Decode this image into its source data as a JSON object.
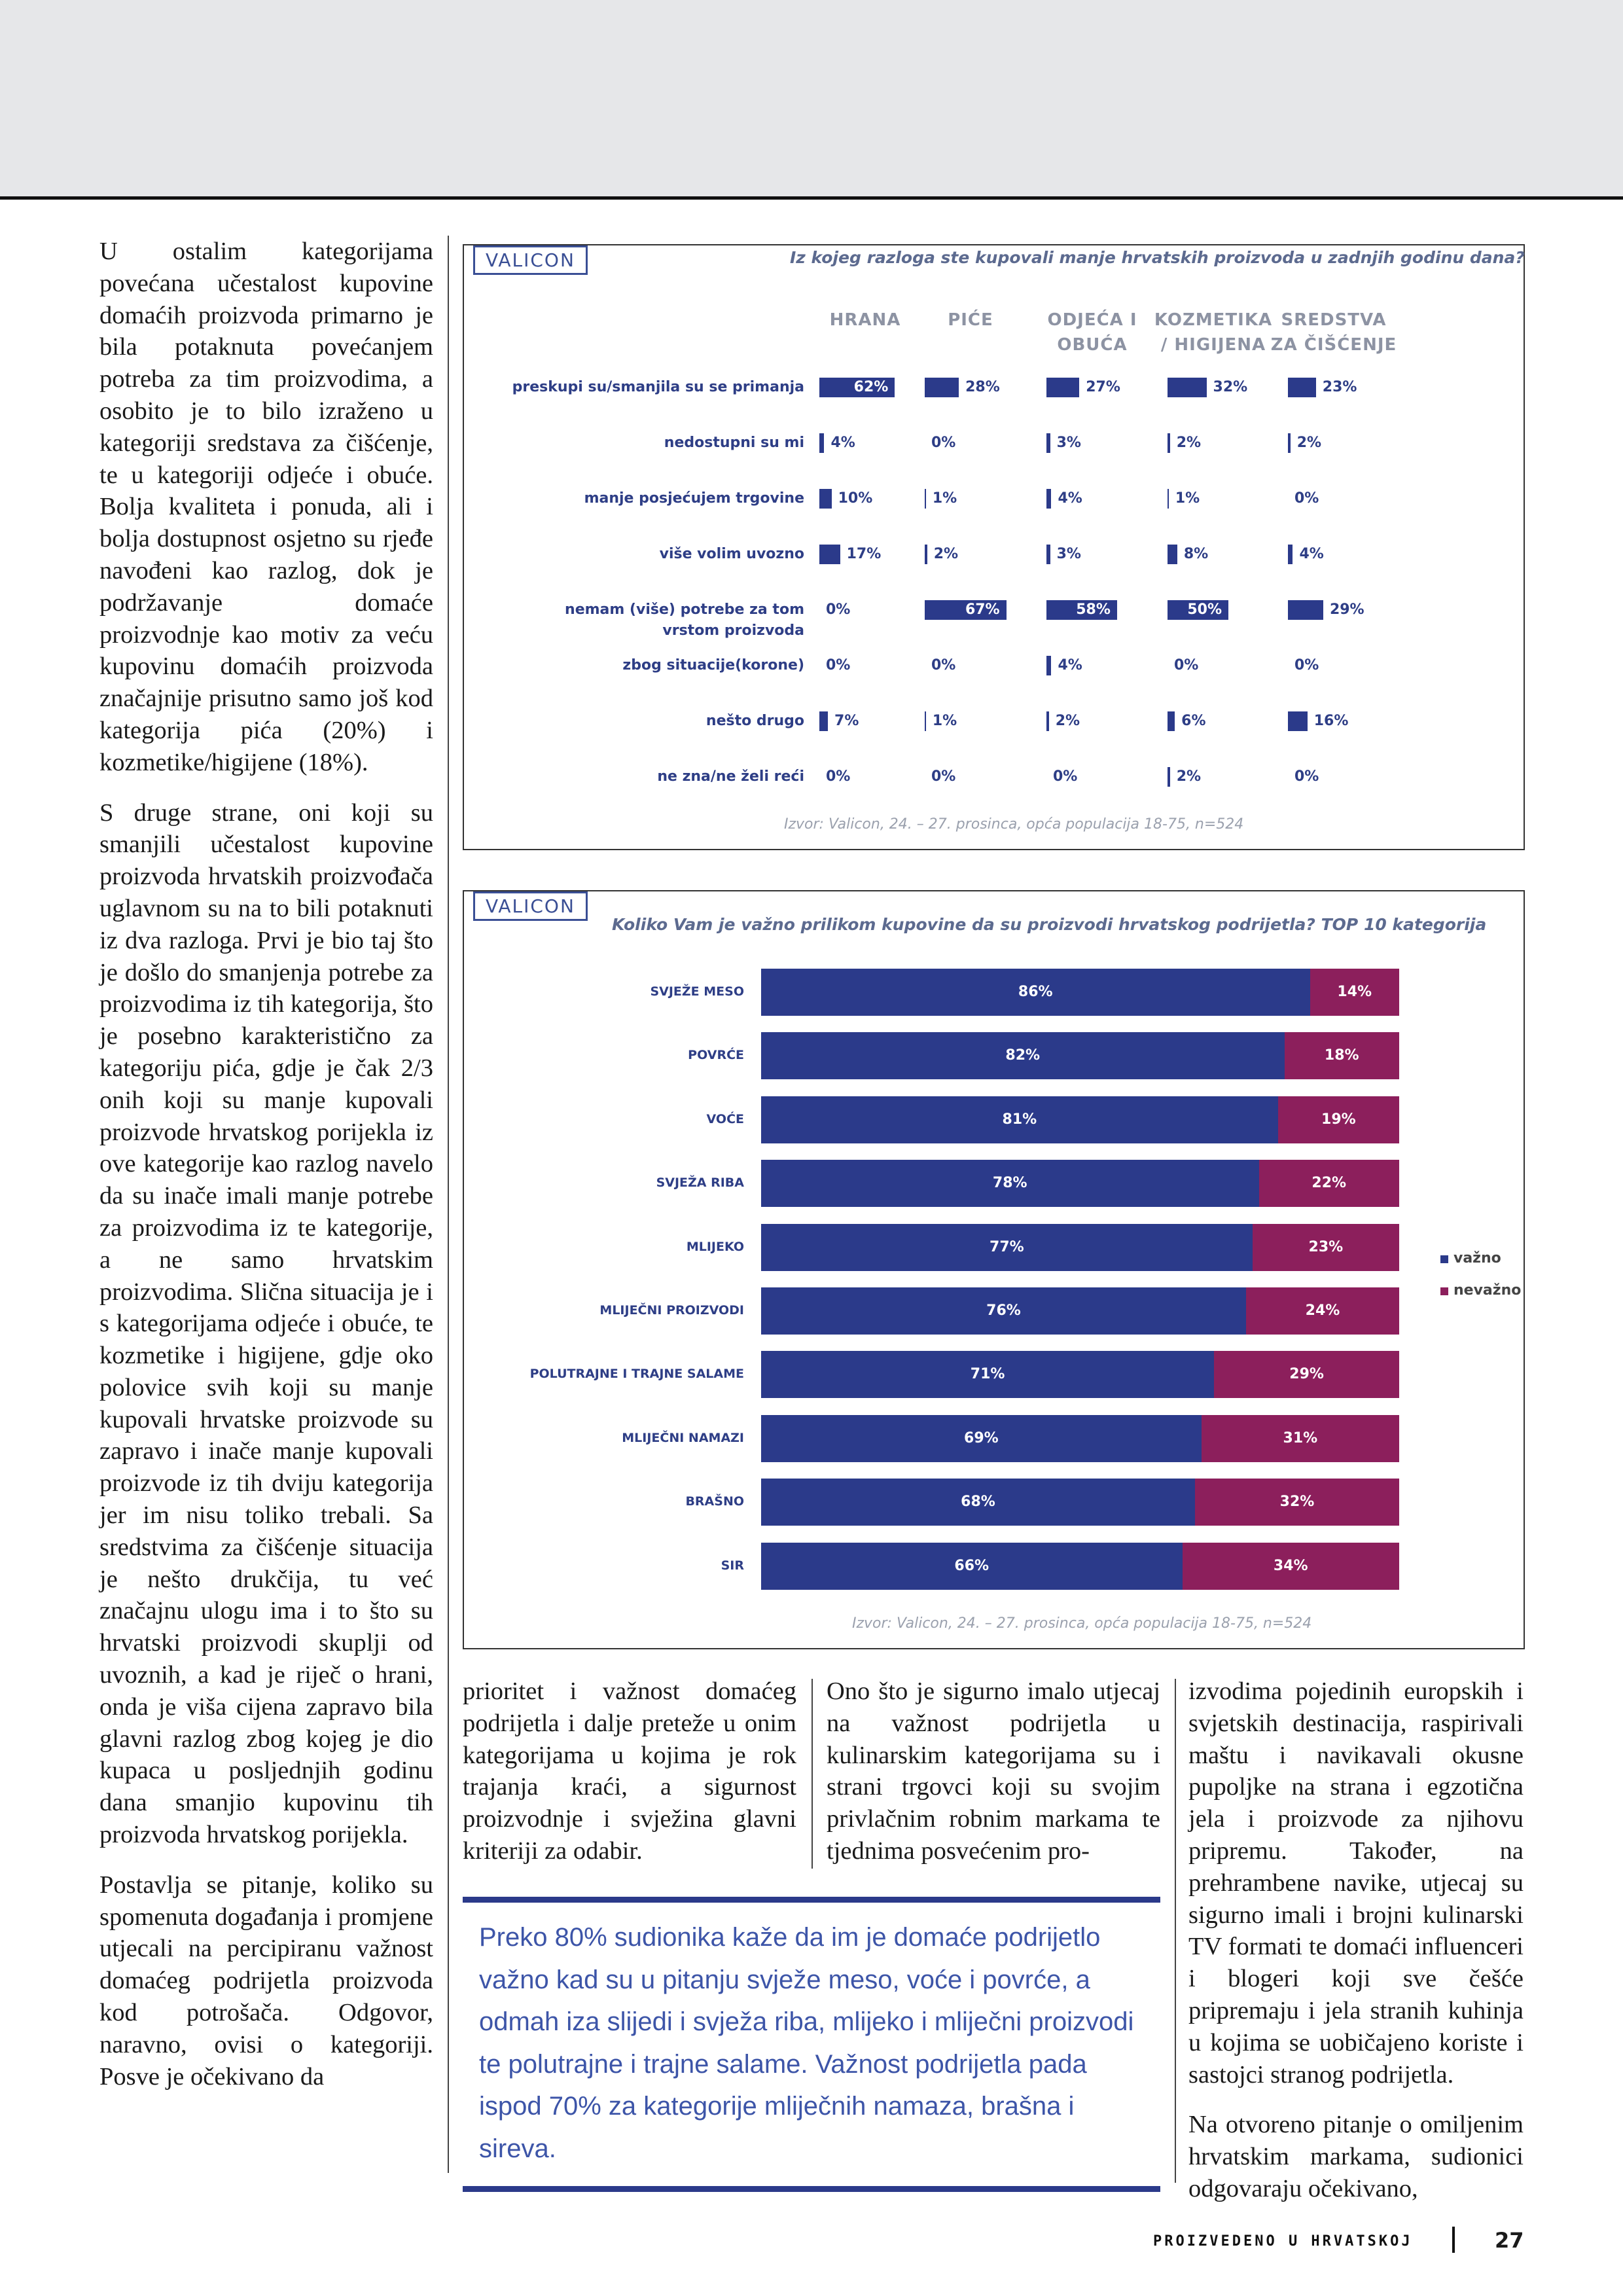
{
  "chart_data": [
    {
      "type": "bar-grid",
      "brand": "VALICON",
      "title": "Iz kojeg razloga ste kupovali manje hrvatskih proizvoda u zadnjih godinu dana?",
      "categories": [
        "preskupi su/smanjila su se primanja",
        "nedostupni su mi",
        "manje posjećujem trgovine",
        "više volim uvozno",
        "nemam (više) potrebe za tom vrstom proizvoda",
        "zbog situacije(korone)",
        "nešto drugo",
        "ne zna/ne želi reći"
      ],
      "xlim": [
        0,
        100
      ],
      "series": [
        {
          "name": "HRANA",
          "color": "#2b3a8a",
          "values": [
            62,
            4,
            10,
            17,
            0,
            0,
            7,
            0
          ],
          "value_labels": [
            "62%",
            "4%",
            "10%",
            "17%",
            "0%",
            "0%",
            "7%",
            "0%"
          ]
        },
        {
          "name": "PIĆE",
          "color": "#2b3a8a",
          "values": [
            28,
            0,
            1,
            2,
            67,
            0,
            1,
            0
          ],
          "value_labels": [
            "28%",
            "0%",
            "1%",
            "2%",
            "67%",
            "0%",
            "1%",
            "0%"
          ]
        },
        {
          "name": "ODJEĆA I OBUĆA",
          "color": "#2b3a8a",
          "values": [
            27,
            3,
            4,
            3,
            58,
            4,
            2,
            0
          ],
          "value_labels": [
            "27%",
            "3%",
            "4%",
            "3%",
            "58%",
            "4%",
            "2%",
            "0%"
          ]
        },
        {
          "name": "KOZMETIKA / HIGIJENA",
          "color": "#2b3a8a",
          "values": [
            32,
            2,
            1,
            8,
            50,
            0,
            6,
            2
          ],
          "value_labels": [
            "32%",
            "2%",
            "1%",
            "8%",
            "50%",
            "0%",
            "6%",
            "2%"
          ]
        },
        {
          "name": "SREDSTVA ZA ČIŠĆENJE",
          "color": "#2b3a8a",
          "values": [
            23,
            2,
            0,
            4,
            29,
            0,
            16,
            0
          ],
          "value_labels": [
            "23%",
            "2%",
            "0%",
            "4%",
            "29%",
            "0%",
            "16%",
            "0%"
          ]
        }
      ],
      "source": "Izvor: Valicon, 24. – 27. prosinca, opća populacija 18-75, n=524"
    },
    {
      "type": "stacked-bar",
      "brand": "VALICON",
      "title": "Koliko Vam je važno prilikom kupovine da su proizvodi hrvatskog podrijetla? TOP 10 kategorija",
      "categories": [
        "SVJEŽE MESO",
        "POVRĆE",
        "VOĆE",
        "SVJEŽA RIBA",
        "MLIJEKO",
        "MLIJEČNI PROIZVODI",
        "POLUTRAJNE I TRAJNE SALAME",
        "MLIJEČNI NAMAZI",
        "BRAŠNO",
        "SIR"
      ],
      "xlim": [
        0,
        100
      ],
      "series": [
        {
          "name": "važno",
          "color": "#2b3a8a",
          "values": [
            86,
            82,
            81,
            78,
            77,
            76,
            71,
            69,
            68,
            66
          ],
          "value_labels": [
            "86%",
            "82%",
            "81%",
            "78%",
            "77%",
            "76%",
            "71%",
            "69%",
            "68%",
            "66%"
          ]
        },
        {
          "name": "nevažno",
          "color": "#8c1f5c",
          "values": [
            14,
            18,
            19,
            22,
            23,
            24,
            29,
            31,
            32,
            34
          ],
          "value_labels": [
            "14%",
            "18%",
            "19%",
            "22%",
            "23%",
            "24%",
            "29%",
            "31%",
            "32%",
            "34%"
          ]
        }
      ],
      "legend": "right",
      "source": "Izvor: Valicon, 24. – 27. prosinca, opća populacija 18-75, n=524"
    }
  ],
  "article": {
    "left_column": [
      "U ostalim kategorijama povećana učestalost kupovine domaćih proizvoda primarno je bila potaknuta povećanjem potreba za tim proizvodima, a osobito je to bilo izraženo u kategoriji sredstava za čišćenje, te u kategoriji odjeće i obuće. Bolja kvaliteta i ponuda, ali i bolja dostupnost osjetno su rjeđe navođeni kao razlog, dok je podržavanje domaće proizvodnje kao motiv za veću kupovinu domaćih proizvoda značajnije prisutno samo još kod kategorija pića (20%) i kozmetike/higijene (18%).",
      "S druge strane, oni koji su smanjili učestalost kupovine proizvoda hrvatskih proizvođača uglavnom su na to bili potaknuti iz dva razloga. Prvi je bio taj što je došlo do smanjenja potrebe za proizvodima iz tih kategorija, što je posebno karakteristično za kategoriju pića, gdje je čak 2/3 onih koji su manje kupovali proizvode hrvatskog porijekla iz ove kategorije kao razlog navelo da su inače imali manje potrebe za proizvodima iz te kategorije, a ne samo hrvatskim proizvodima. Slična situacija je i s kategorijama odjeće i obuće, te kozmetike i higijene, gdje oko polovice svih koji su manje kupovali hrvatske proizvode su zapravo i inače manje kupovali proizvode iz tih dviju kategorija jer im nisu toliko trebali. Sa sredstvima za čišćenje situacija je nešto drukčija, tu već značajnu ulogu ima i to što su hrvatski proizvodi skuplji od uvoznih, a kad je riječ o hrani, onda je viša cijena zapravo bila glavni razlog zbog kojeg je dio kupaca u posljednjih godinu dana smanjio kupovinu tih proizvoda hrvatskog porijekla.",
      "Postavlja se pitanje, koliko su spomenuta događanja i promjene utjecali na percipiranu važnost domaćeg podrijetla proizvoda kod potrošača. Odgovor, naravno, ovisi o kategoriji. Posve je očekivano da"
    ],
    "column_2": "prioritet i važnost domaćeg podrijetla i dalje preteže u onim kategorijama u kojima je rok trajanja kraći, a sigurnost proizvodnje i svježina glavni kriteriji za odabir.",
    "column_3": "Ono što je sigurno imalo utjecaj na važnost podrijetla u kulinarskim kategorijama su i strani trgovci koji su svojim privlačnim robnim markama te tjednima posvećenim pro-",
    "column_4": [
      "izvodima pojedinih europskih i svjetskih destinacija, raspirivali maštu i navikavali okusne pupoljke na strana i egzotična jela i proizvode za njihovu pripremu. Također, na prehrambene navike, utjecaj su sigurno imali i brojni kulinarski TV formati te domaći influenceri i blogeri koji sve češće pripremaju i jela stranih kuhinja u kojima se uobičajeno koriste i sastojci stranog podrijetla.",
      "Na otvoreno pitanje o omiljenim hrvatskim markama, sudionici odgovaraju očekivano,"
    ],
    "pull_quote": "Preko 80% sudionika kaže da im je domaće podrijetlo važno kad su u pitanju svježe meso, voće i povrće, a odmah iza slijedi i svježa riba, mlijeko i mliječni proizvodi te polutrajne i trajne salame. Važnost podrijetla pada ispod 70% za kategorije mliječnih namaza, brašna i sireva."
  },
  "footer": {
    "section": "PROIZVEDENO U HRVATSKOJ",
    "page_number": "27"
  }
}
